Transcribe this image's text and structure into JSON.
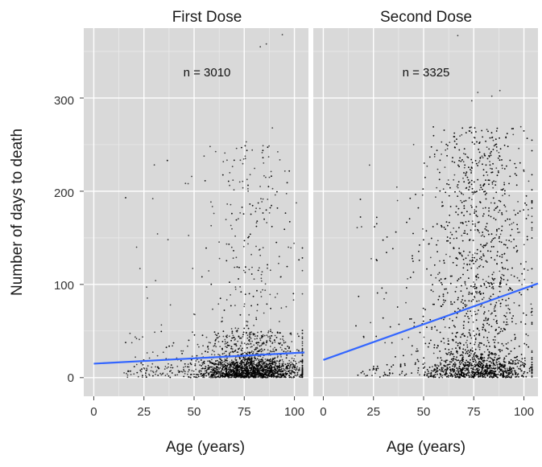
{
  "figure": {
    "ylabel": "Number of days to death",
    "panels": [
      {
        "strip": "First Dose",
        "n_label": "n = 3010",
        "xlabel": "Age (years)"
      },
      {
        "strip": "Second Dose",
        "n_label": "n = 3325",
        "xlabel": "Age (years)"
      }
    ]
  },
  "chart_data": [
    {
      "type": "scatter",
      "title": "First Dose",
      "annotation": "n = 3010",
      "xlabel": "Age (years)",
      "ylabel": "Number of days to death",
      "xlim": [
        -5,
        107
      ],
      "ylim": [
        -20,
        375
      ],
      "x_ticks": [
        0,
        25,
        50,
        75,
        100
      ],
      "y_ticks": [
        0,
        100,
        200,
        300
      ],
      "grid": true,
      "point_color": "#000000",
      "fit_color": "#3366FF",
      "trend_line": {
        "x": [
          0,
          105
        ],
        "y": [
          15,
          27
        ]
      },
      "notable_points": [
        {
          "x": 94,
          "y": 368
        },
        {
          "x": 86,
          "y": 358
        },
        {
          "x": 83,
          "y": 355
        },
        {
          "x": 89,
          "y": 268
        },
        {
          "x": 76,
          "y": 253
        },
        {
          "x": 58,
          "y": 248
        },
        {
          "x": 23,
          "y": 117
        },
        {
          "x": 37,
          "y": 148
        }
      ]
    },
    {
      "type": "scatter",
      "title": "Second Dose",
      "annotation": "n = 3325",
      "xlabel": "Age (years)",
      "ylabel": "Number of days to death",
      "xlim": [
        -5,
        107
      ],
      "ylim": [
        -20,
        375
      ],
      "x_ticks": [
        0,
        25,
        50,
        75,
        100
      ],
      "y_ticks": [
        0,
        100,
        200,
        300
      ],
      "grid": true,
      "point_color": "#000000",
      "fit_color": "#3366FF",
      "trend_line": {
        "x": [
          0,
          107
        ],
        "y": [
          19,
          101
        ]
      },
      "notable_points": [
        {
          "x": 67,
          "y": 367
        },
        {
          "x": 77,
          "y": 306
        },
        {
          "x": 88,
          "y": 308
        },
        {
          "x": 84,
          "y": 302
        },
        {
          "x": 74,
          "y": 297
        },
        {
          "x": 45,
          "y": 250
        },
        {
          "x": 23,
          "y": 228
        },
        {
          "x": 37,
          "y": 190
        }
      ]
    }
  ]
}
